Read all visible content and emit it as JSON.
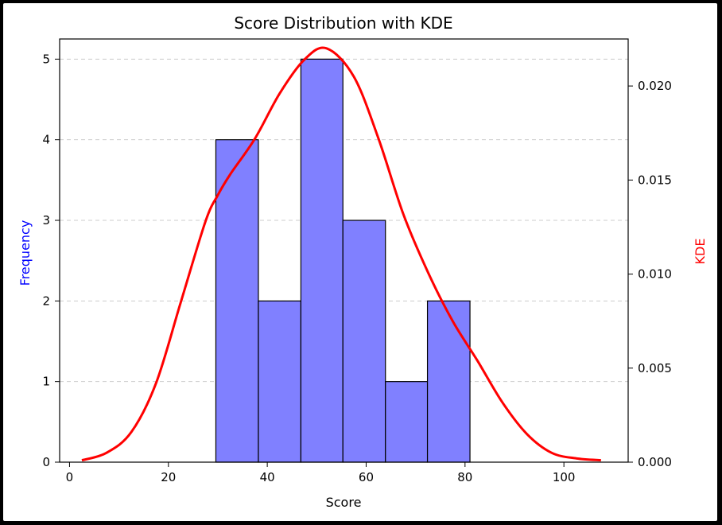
{
  "chart_data": {
    "type": "bar",
    "title": "Score Distribution with KDE",
    "xlabel": "Score",
    "ylabel": "Frequency",
    "ylabel_right": "KDE",
    "xlim": [
      -2,
      113
    ],
    "ylim": [
      0,
      5.25
    ],
    "ylim_right": [
      0,
      0.0225
    ],
    "x_ticks": [
      0,
      20,
      40,
      60,
      80,
      100
    ],
    "y_ticks": [
      0,
      1,
      2,
      3,
      4,
      5
    ],
    "y_ticks_right": [
      0.0,
      0.005,
      0.01,
      0.015,
      0.02
    ],
    "y_ticks_right_labels": [
      "0.000",
      "0.005",
      "0.010",
      "0.015",
      "0.020"
    ],
    "grid": "horizontal dashed (y)",
    "series": [
      {
        "name": "Frequency",
        "kind": "histogram",
        "color": "#8080ff",
        "edge_color": "#000000",
        "bin_edges": [
          29.6,
          38.2,
          46.8,
          55.3,
          63.9,
          72.4,
          81.0
        ],
        "values": [
          4,
          2,
          5,
          3,
          1,
          2
        ]
      },
      {
        "name": "KDE",
        "kind": "line",
        "color": "#ff0000",
        "axis": "right",
        "x": [
          2.5,
          7.5,
          12.5,
          17.5,
          22.5,
          27.5,
          30,
          32.5,
          37.5,
          42.5,
          47.5,
          52,
          57.5,
          62.5,
          67.5,
          72.5,
          77.5,
          82.5,
          87.5,
          92.5,
          97.5,
          102.5,
          107.5
        ],
        "values": [
          0.0001,
          0.0005,
          0.0016,
          0.0042,
          0.0085,
          0.0128,
          0.0142,
          0.0153,
          0.0172,
          0.0196,
          0.0214,
          0.022,
          0.0205,
          0.0172,
          0.0132,
          0.0101,
          0.0075,
          0.0054,
          0.0032,
          0.0015,
          0.0005,
          0.0002,
          0.0001
        ]
      }
    ]
  },
  "colors": {
    "left_axis_label": "#0000ff",
    "right_axis_label": "#ff0000",
    "grid": "#cccccc"
  }
}
